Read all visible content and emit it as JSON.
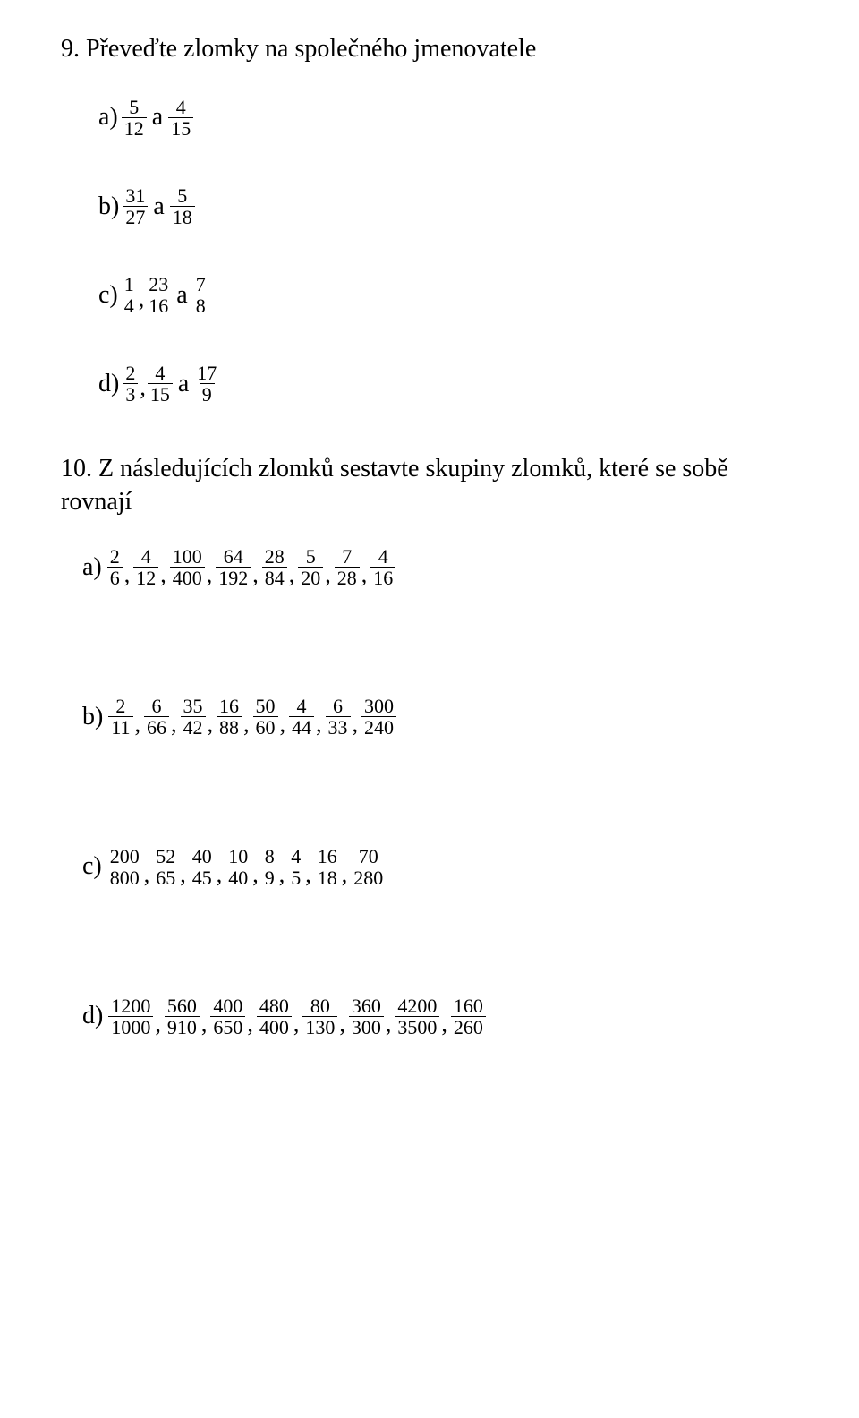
{
  "q9": {
    "number": "9.",
    "title": "Převeďte zlomky na společného jmenovatele",
    "items": [
      {
        "label": "a)",
        "parts": [
          {
            "type": "frac",
            "n": "5",
            "d": "12"
          },
          {
            "type": "conn",
            "text": "a"
          },
          {
            "type": "frac",
            "n": "4",
            "d": "15"
          }
        ]
      },
      {
        "label": "b)",
        "parts": [
          {
            "type": "frac",
            "n": "31",
            "d": "27"
          },
          {
            "type": "conn",
            "text": "a"
          },
          {
            "type": "frac",
            "n": "5",
            "d": "18"
          }
        ]
      },
      {
        "label": "c)",
        "parts": [
          {
            "type": "frac",
            "n": "1",
            "d": "4"
          },
          {
            "type": "comma",
            "text": ","
          },
          {
            "type": "frac",
            "n": "23",
            "d": "16"
          },
          {
            "type": "conn",
            "text": "a"
          },
          {
            "type": "frac",
            "n": "7",
            "d": "8"
          }
        ]
      },
      {
        "label": "d)",
        "parts": [
          {
            "type": "frac",
            "n": "2",
            "d": "3"
          },
          {
            "type": "comma",
            "text": ","
          },
          {
            "type": "frac",
            "n": "4",
            "d": "15"
          },
          {
            "type": "conn",
            "text": "a"
          },
          {
            "type": "frac",
            "n": "17",
            "d": "9"
          }
        ]
      }
    ]
  },
  "q10": {
    "number": "10.",
    "title": "Z následujících zlomků sestavte skupiny zlomků, které se sobě rovnají",
    "groups": [
      {
        "label": "a)",
        "fracs": [
          {
            "n": "2",
            "d": "6"
          },
          {
            "n": "4",
            "d": "12"
          },
          {
            "n": "100",
            "d": "400"
          },
          {
            "n": "64",
            "d": "192"
          },
          {
            "n": "28",
            "d": "84"
          },
          {
            "n": "5",
            "d": "20"
          },
          {
            "n": "7",
            "d": "28"
          },
          {
            "n": "4",
            "d": "16"
          }
        ]
      },
      {
        "label": "b)",
        "fracs": [
          {
            "n": "2",
            "d": "11"
          },
          {
            "n": "6",
            "d": "66"
          },
          {
            "n": "35",
            "d": "42"
          },
          {
            "n": "16",
            "d": "88"
          },
          {
            "n": "50",
            "d": "60"
          },
          {
            "n": "4",
            "d": "44"
          },
          {
            "n": "6",
            "d": "33"
          },
          {
            "n": "300",
            "d": "240"
          }
        ]
      },
      {
        "label": "c)",
        "fracs": [
          {
            "n": "200",
            "d": "800"
          },
          {
            "n": "52",
            "d": "65"
          },
          {
            "n": "40",
            "d": "45"
          },
          {
            "n": "10",
            "d": "40"
          },
          {
            "n": "8",
            "d": "9"
          },
          {
            "n": "4",
            "d": "5"
          },
          {
            "n": "16",
            "d": "18"
          },
          {
            "n": "70",
            "d": "280"
          }
        ]
      },
      {
        "label": "d)",
        "fracs": [
          {
            "n": "1200",
            "d": "1000"
          },
          {
            "n": "560",
            "d": "910"
          },
          {
            "n": "400",
            "d": "650"
          },
          {
            "n": "480",
            "d": "400"
          },
          {
            "n": "80",
            "d": "130"
          },
          {
            "n": "360",
            "d": "300"
          },
          {
            "n": "4200",
            "d": "3500"
          },
          {
            "n": "160",
            "d": "260"
          }
        ]
      }
    ]
  }
}
